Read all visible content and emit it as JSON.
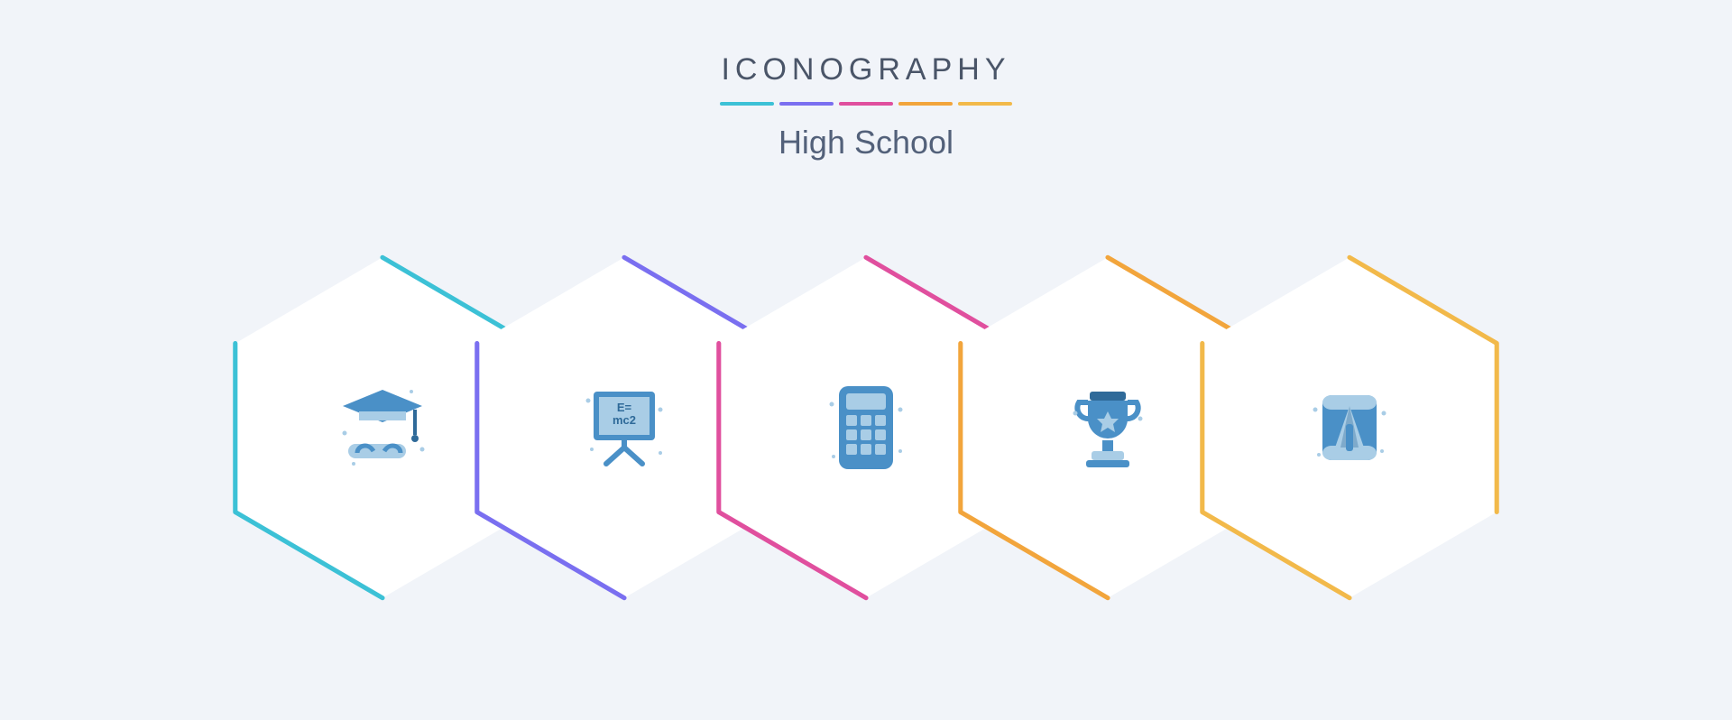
{
  "header": {
    "brand": "ICONOGRAPHY",
    "subtitle": "High School",
    "underline_colors": [
      "#3cc1d6",
      "#7a6ff0",
      "#e04f9e",
      "#f2a53c",
      "#f2b94a"
    ],
    "brand_color": "#4a5568",
    "subtitle_color": "#53617a",
    "brand_fontsize": 34,
    "subtitle_fontsize": 36
  },
  "layout": {
    "background": "#f1f4f9",
    "hex_fill": "#ffffff",
    "hex_stroke_width": 3,
    "hex_width": 340,
    "hex_height": 392,
    "hex_overlap": -36
  },
  "icon_palette": {
    "primary": "#4a90c7",
    "light": "#a9cde6",
    "dark": "#2f6a99"
  },
  "items": [
    {
      "id": "graduation",
      "accent": "#3cc1d6",
      "label": "graduation-cap-diploma"
    },
    {
      "id": "formula",
      "accent": "#7a6ff0",
      "label": "formula-board"
    },
    {
      "id": "calculator",
      "accent": "#e04f9e",
      "label": "calculator"
    },
    {
      "id": "trophy",
      "accent": "#f2a53c",
      "label": "trophy-award"
    },
    {
      "id": "sharpener",
      "accent": "#f2b94a",
      "label": "pencil-sharpener"
    }
  ]
}
